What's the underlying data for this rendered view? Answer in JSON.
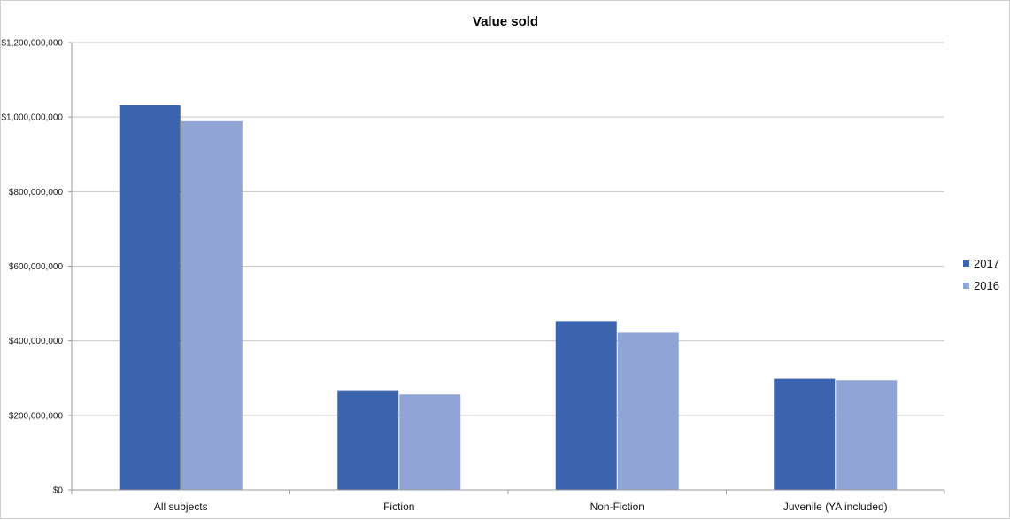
{
  "chart_data": {
    "type": "bar",
    "title": "Value sold",
    "xlabel": "",
    "ylabel": "",
    "categories": [
      "All subjects",
      "Fiction",
      "Non-Fiction",
      "Juvenile (YA included)"
    ],
    "series": [
      {
        "name": "2017",
        "values": [
          1032000000,
          267000000,
          453000000,
          298000000
        ],
        "color": "#3c64ae"
      },
      {
        "name": "2016",
        "values": [
          989000000,
          256000000,
          422000000,
          294000000
        ],
        "color": "#90a5d6"
      }
    ],
    "ylim": [
      0,
      1200000000
    ],
    "yticks": [
      0,
      200000000,
      400000000,
      600000000,
      800000000,
      1000000000,
      1200000000
    ],
    "ytick_labels": [
      "$0",
      "$200,000,000",
      "$400,000,000",
      "$600,000,000",
      "$800,000,000",
      "$1,000,000,000",
      "$1,200,000,000"
    ],
    "grid": true,
    "legend_position": "right"
  }
}
